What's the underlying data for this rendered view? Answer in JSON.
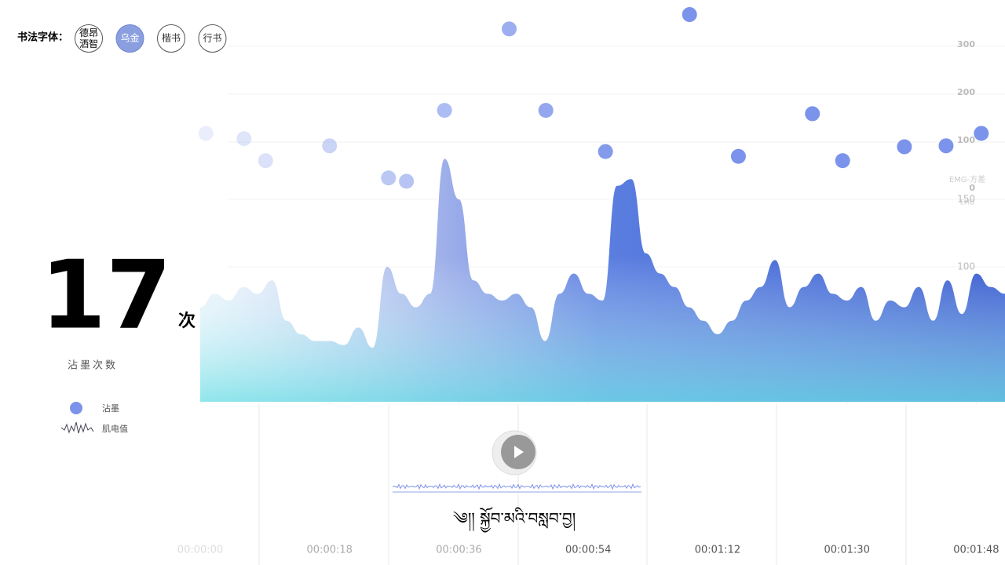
{
  "header": {
    "label": "书法字体：",
    "fonts": [
      "德昂洒智",
      "乌金",
      "楷书",
      "行书"
    ],
    "selected": 1
  },
  "counter": {
    "value": 17,
    "unit": "次",
    "label": "沾墨次数"
  },
  "caption": "༄།། སྐྱོབ་མའི་བསླབ་བྱ།",
  "chart_data": {
    "type": "scatter",
    "xlim": [
      0,
      112
    ],
    "xticks": [
      {
        "value": 0,
        "label": "00:00:00"
      },
      {
        "value": 18,
        "label": "00:00:18"
      },
      {
        "value": 36,
        "label": "00:00:36"
      },
      {
        "value": 54,
        "label": "00:00:54"
      },
      {
        "value": 72,
        "label": "00:01:12"
      },
      {
        "value": 90,
        "label": "00:01:30"
      },
      {
        "value": 108,
        "label": "00:01:48"
      }
    ],
    "ylim": [
      0,
      380
    ],
    "yticks": [
      0,
      100,
      200,
      300
    ],
    "ylabel": "EMG-方差",
    "y2lim": [
      0,
      175
    ],
    "y2ticks": [
      100,
      150
    ],
    "y2label": "EMG",
    "grid": true,
    "series": [
      {
        "name": "沾墨",
        "color": "#7b93ea",
        "x": [
          0.8,
          6.1,
          9.1,
          18,
          26.2,
          28.7,
          34,
          43,
          48.1,
          56.4,
          68.1,
          74.9,
          85.2,
          89.4,
          98,
          103.8,
          108.7
        ],
        "values": [
          118,
          107,
          61,
          92,
          25,
          18,
          166,
          336,
          166,
          80,
          366,
          70,
          159,
          61,
          90,
          92,
          118
        ]
      },
      {
        "name": "肌电值",
        "axis": "y2",
        "color": "#3f63d6",
        "x": [
          0,
          2,
          4,
          6,
          8,
          10,
          12,
          14,
          16,
          18,
          20,
          22,
          24,
          26,
          28,
          30,
          32,
          34,
          36,
          38,
          40,
          42,
          44,
          46,
          48,
          50,
          52,
          54,
          56,
          58,
          60,
          62,
          64,
          66,
          68,
          70,
          72,
          74,
          76,
          78,
          80,
          82,
          84,
          86,
          88,
          90,
          92,
          94,
          96,
          98,
          100,
          102,
          104,
          106,
          108,
          110,
          112
        ],
        "values": [
          70,
          80,
          75,
          85,
          80,
          90,
          60,
          50,
          45,
          45,
          42,
          55,
          40,
          100,
          80,
          70,
          80,
          180,
          150,
          90,
          80,
          75,
          80,
          70,
          45,
          80,
          95,
          80,
          75,
          160,
          165,
          110,
          95,
          85,
          70,
          60,
          50,
          60,
          75,
          85,
          105,
          70,
          85,
          95,
          80,
          75,
          85,
          60,
          75,
          70,
          85,
          60,
          90,
          65,
          95,
          85,
          80
        ]
      }
    ]
  }
}
